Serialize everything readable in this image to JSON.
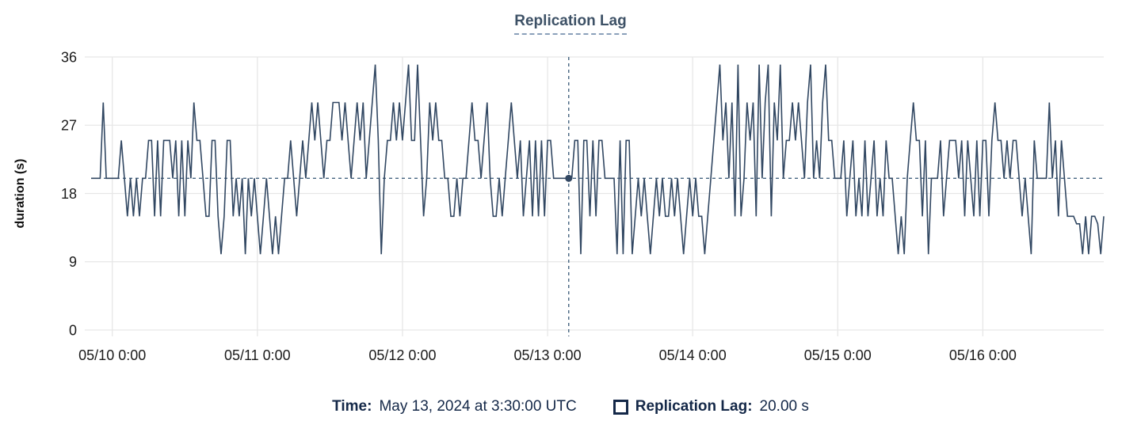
{
  "title": "Replication Lag",
  "axes": {
    "y_label": "duration (s)",
    "y_ticks": [
      0,
      9,
      18,
      27,
      36
    ],
    "x_tick_labels": [
      "05/10 0:00",
      "05/11 0:00",
      "05/12 0:00",
      "05/13 0:00",
      "05/14 0:00",
      "05/15 0:00",
      "05/16 0:00"
    ]
  },
  "tooltip": {
    "time_label": "Time:",
    "time_value": "May 13, 2024 at 3:30:00 UTC",
    "series_label": "Replication Lag:",
    "series_value": "20.00 s"
  },
  "colors": {
    "line": "#314762",
    "crosshair": "#456480",
    "grid": "#e7e7e7",
    "tick_text": "#1a1a1a",
    "axis_title": "#111111",
    "title_text": "#3d5166",
    "footer_text": "#142848"
  },
  "chart_data": {
    "type": "line",
    "title": "Replication Lag",
    "xlabel": "",
    "ylabel": "duration (s)",
    "ylim": [
      0,
      36
    ],
    "grid": true,
    "legend_position": "bottom",
    "x_start": "2024-05-09T20:30:00Z",
    "x_interval_minutes": 30,
    "x_tick_labels": [
      "05/10 0:00",
      "05/11 0:00",
      "05/12 0:00",
      "05/13 0:00",
      "05/14 0:00",
      "05/15 0:00",
      "05/16 0:00"
    ],
    "x_tick_indices": [
      7,
      55,
      103,
      151,
      199,
      247,
      295
    ],
    "crosshair": {
      "index": 158,
      "time": "May 13, 2024 at 3:30:00 UTC",
      "value": 20,
      "value_label": "20.00 s"
    },
    "series": [
      {
        "name": "Replication Lag",
        "color": "#314762",
        "values": [
          20,
          20,
          20,
          20,
          30,
          20,
          20,
          20,
          20,
          20,
          25,
          20,
          15,
          20,
          15,
          20,
          15,
          20,
          20,
          25,
          25,
          15,
          25,
          15,
          25,
          25,
          25,
          20,
          25,
          15,
          25,
          15,
          25,
          20,
          30,
          25,
          25,
          20,
          15,
          15,
          25,
          25,
          15,
          10,
          15,
          25,
          25,
          15,
          20,
          15,
          20,
          10,
          20,
          15,
          20,
          15,
          10,
          15,
          20,
          15,
          10,
          15,
          10,
          15,
          20,
          20,
          25,
          20,
          15,
          20,
          25,
          20,
          25,
          30,
          25,
          30,
          25,
          20,
          25,
          25,
          30,
          30,
          30,
          25,
          30,
          25,
          20,
          25,
          30,
          25,
          30,
          20,
          25,
          30,
          35,
          25,
          10,
          20,
          25,
          25,
          30,
          25,
          30,
          25,
          30,
          35,
          25,
          25,
          35,
          25,
          15,
          20,
          30,
          25,
          30,
          25,
          25,
          20,
          20,
          15,
          15,
          20,
          15,
          20,
          20,
          25,
          30,
          25,
          25,
          20,
          25,
          30,
          20,
          15,
          15,
          20,
          15,
          20,
          25,
          30,
          25,
          20,
          25,
          15,
          20,
          25,
          15,
          25,
          15,
          25,
          15,
          25,
          25,
          20,
          20,
          20,
          20,
          20,
          20,
          20,
          25,
          25,
          10,
          25,
          25,
          15,
          25,
          15,
          25,
          25,
          20,
          20,
          20,
          20,
          10,
          25,
          10,
          25,
          25,
          10,
          15,
          20,
          15,
          20,
          15,
          10,
          15,
          20,
          15,
          20,
          15,
          15,
          20,
          15,
          20,
          15,
          10,
          15,
          20,
          15,
          20,
          15,
          15,
          10,
          15,
          20,
          25,
          30,
          35,
          25,
          30,
          20,
          30,
          15,
          35,
          15,
          20,
          30,
          25,
          30,
          15,
          35,
          20,
          30,
          35,
          15,
          30,
          25,
          35,
          20,
          25,
          25,
          30,
          25,
          30,
          25,
          20,
          30,
          35,
          20,
          25,
          20,
          30,
          35,
          25,
          25,
          20,
          20,
          20,
          25,
          15,
          20,
          25,
          15,
          20,
          15,
          25,
          15,
          20,
          25,
          15,
          20,
          15,
          25,
          20,
          20,
          15,
          10,
          15,
          10,
          20,
          25,
          30,
          25,
          25,
          15,
          25,
          10,
          20,
          20,
          20,
          25,
          15,
          20,
          25,
          25,
          25,
          20,
          25,
          15,
          25,
          20,
          15,
          25,
          15,
          25,
          25,
          15,
          25,
          30,
          25,
          25,
          20,
          25,
          20,
          25,
          25,
          20,
          15,
          20,
          15,
          10,
          25,
          20,
          20,
          20,
          20,
          30,
          20,
          25,
          15,
          25,
          20,
          15,
          15,
          15,
          14,
          14,
          10,
          15,
          10,
          15,
          15,
          14,
          10,
          15
        ]
      }
    ]
  }
}
